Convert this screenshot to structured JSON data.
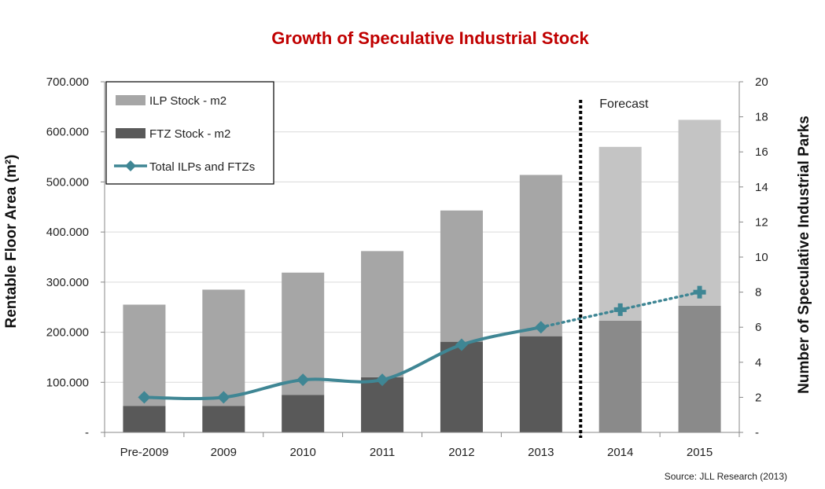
{
  "chart_data": {
    "type": "bar",
    "title": "Growth of Speculative Industrial Stock",
    "categories": [
      "Pre-2009",
      "2009",
      "2010",
      "2011",
      "2012",
      "2013",
      "2014",
      "2015"
    ],
    "series": [
      {
        "name": "FTZ Stock - m2",
        "kind": "bar",
        "axis": "left",
        "values": [
          53000,
          53000,
          75000,
          110000,
          181000,
          192000,
          223000,
          253000
        ]
      },
      {
        "name": "ILP Stock - m2",
        "kind": "bar",
        "axis": "left",
        "values": [
          202000,
          232000,
          244000,
          252000,
          262000,
          322000,
          347000,
          371000
        ]
      },
      {
        "name": "Total ILPs and FTZs",
        "kind": "line",
        "axis": "right",
        "values": [
          2,
          2,
          3,
          3,
          5,
          6,
          7,
          8
        ]
      }
    ],
    "forecast_from_index": 6,
    "forecast_label": "Forecast",
    "ylabel": "Rentable Floor Area (m²)",
    "y2label": "Number of Speculative Industrial Parks",
    "ylim": [
      0,
      700000
    ],
    "y_ticks": [
      0,
      100000,
      200000,
      300000,
      400000,
      500000,
      600000,
      700000
    ],
    "y_tick_labels": [
      "-",
      "100.000",
      "200.000",
      "300.000",
      "400.000",
      "500.000",
      "600.000",
      "700.000"
    ],
    "y2lim": [
      0,
      20
    ],
    "y2_ticks": [
      0,
      2,
      4,
      6,
      8,
      10,
      12,
      14,
      16,
      18,
      20
    ],
    "y2_tick_labels": [
      "-",
      "2",
      "4",
      "6",
      "8",
      "10",
      "12",
      "14",
      "16",
      "18",
      "20"
    ],
    "legend_position": "top-left",
    "grid": true,
    "source": "Source: JLL Research (2013)",
    "colors": {
      "title": "#c00000",
      "ilp": "#a6a6a6",
      "ilp_forecast": "#c4c4c4",
      "ftz": "#595959",
      "ftz_forecast": "#8a8a8a",
      "line": "#3f8694",
      "grid": "#d9d9d9"
    }
  }
}
